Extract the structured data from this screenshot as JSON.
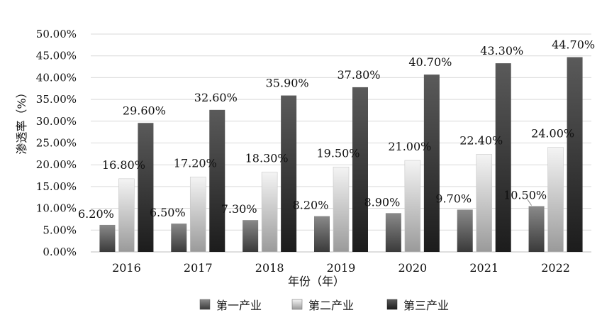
{
  "chart_data": {
    "type": "bar",
    "title": "",
    "xlabel": "年份（年）",
    "ylabel": "渗透率（%）",
    "categories": [
      "2016",
      "2017",
      "2018",
      "2019",
      "2020",
      "2021",
      "2022"
    ],
    "series": [
      {
        "name": "第一产业",
        "values": [
          6.2,
          6.5,
          7.3,
          8.2,
          8.9,
          9.7,
          10.5
        ],
        "labels": [
          "6.20%",
          "6.50%",
          "7.30%",
          "8.20%",
          "8.90%",
          "9.70%",
          "10.50%"
        ]
      },
      {
        "name": "第二产业",
        "values": [
          16.8,
          17.2,
          18.3,
          19.5,
          21.0,
          22.4,
          24.0
        ],
        "labels": [
          "16.80%",
          "17.20%",
          "18.30%",
          "19.50%",
          "21.00%",
          "22.40%",
          "24.00%"
        ]
      },
      {
        "name": "第三产业",
        "values": [
          29.6,
          32.6,
          35.9,
          37.8,
          40.7,
          43.3,
          44.7
        ],
        "labels": [
          "29.60%",
          "32.60%",
          "35.90%",
          "37.80%",
          "40.70%",
          "43.30%",
          "44.70%"
        ]
      }
    ],
    "ylim": [
      0,
      50
    ],
    "yticks": [
      0,
      5,
      10,
      15,
      20,
      25,
      30,
      35,
      40,
      45,
      50
    ],
    "ytick_labels": [
      "0.00%",
      "5.00%",
      "10.00%",
      "15.00%",
      "20.00%",
      "25.00%",
      "30.00%",
      "35.00%",
      "40.00%",
      "45.00%",
      "50.00%"
    ],
    "grid": true,
    "legend_position": "bottom"
  },
  "colors": {
    "series1_top": "#8a8a8a",
    "series1_bottom": "#3a3a3a",
    "series2_top": "#f4f4f4",
    "series2_bottom": "#9a9a9a",
    "series3_top": "#5a5a5a",
    "series3_bottom": "#1c1c1c",
    "grid": "#d9d9d9"
  }
}
